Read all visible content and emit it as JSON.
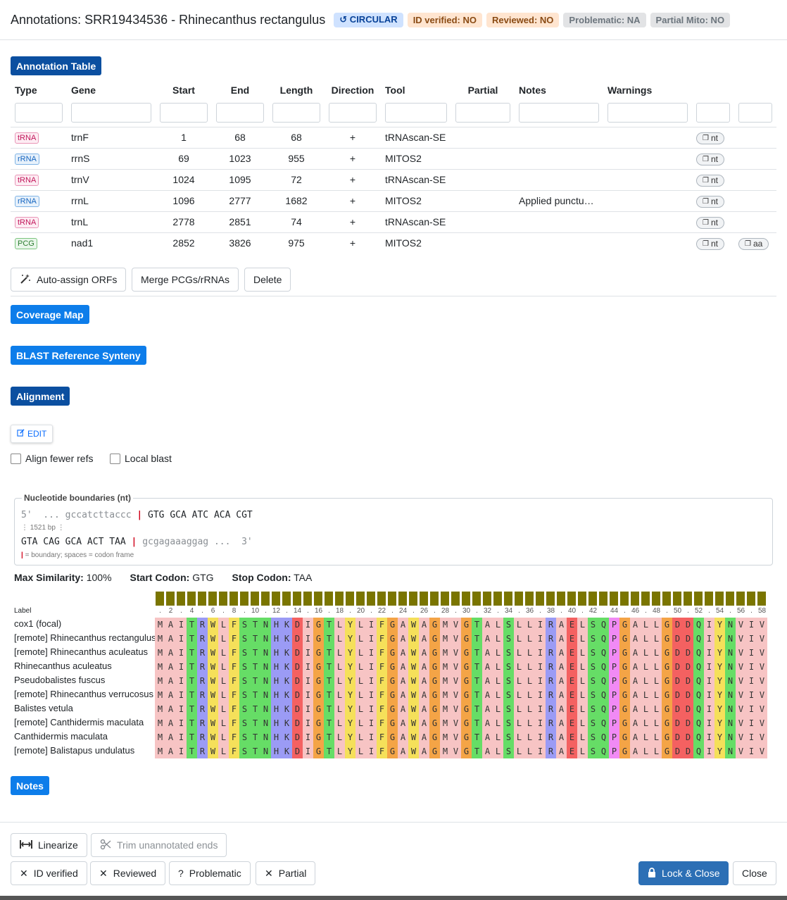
{
  "header": {
    "title": "Annotations: SRR19434536 - Rhinecanthus rectangulus",
    "badges": [
      {
        "label": "↺ CIRCULAR",
        "style": "circ"
      },
      {
        "label": "ID verified: NO",
        "style": "warn"
      },
      {
        "label": "Reviewed: NO",
        "style": "warn"
      },
      {
        "label": "Problematic: NA",
        "style": "gray"
      },
      {
        "label": "Partial Mito: NO",
        "style": "gray"
      }
    ]
  },
  "annotation_table": {
    "section_title": "Annotation Table",
    "columns": [
      "Type",
      "Gene",
      "Start",
      "End",
      "Length",
      "Direction",
      "Tool",
      "Partial",
      "Notes",
      "Warnings",
      "",
      ""
    ],
    "rows": [
      {
        "type": "tRNA",
        "gene": "trnF",
        "start": "1",
        "end": "68",
        "length": "68",
        "direction": "+",
        "tool": "tRNAscan-SE",
        "partial": "",
        "notes": "",
        "warnings": "",
        "nt": "nt",
        "aa": ""
      },
      {
        "type": "rRNA",
        "gene": "rrnS",
        "start": "69",
        "end": "1023",
        "length": "955",
        "direction": "+",
        "tool": "MITOS2",
        "partial": "",
        "notes": "",
        "warnings": "",
        "nt": "nt",
        "aa": ""
      },
      {
        "type": "tRNA",
        "gene": "trnV",
        "start": "1024",
        "end": "1095",
        "length": "72",
        "direction": "+",
        "tool": "tRNAscan-SE",
        "partial": "",
        "notes": "",
        "warnings": "",
        "nt": "nt",
        "aa": ""
      },
      {
        "type": "rRNA",
        "gene": "rrnL",
        "start": "1096",
        "end": "2777",
        "length": "1682",
        "direction": "+",
        "tool": "MITOS2",
        "partial": "",
        "notes": "Applied punctu…",
        "warnings": "",
        "nt": "nt",
        "aa": ""
      },
      {
        "type": "tRNA",
        "gene": "trnL",
        "start": "2778",
        "end": "2851",
        "length": "74",
        "direction": "+",
        "tool": "tRNAscan-SE",
        "partial": "",
        "notes": "",
        "warnings": "",
        "nt": "nt",
        "aa": ""
      },
      {
        "type": "PCG",
        "gene": "nad1",
        "start": "2852",
        "end": "3826",
        "length": "975",
        "direction": "+",
        "tool": "MITOS2",
        "partial": "",
        "notes": "",
        "warnings": "",
        "nt": "nt",
        "aa": "aa"
      }
    ]
  },
  "table_actions": {
    "auto_assign": "Auto-assign ORFs",
    "merge": "Merge PCGs/rRNAs",
    "delete": "Delete"
  },
  "sections": {
    "coverage": "Coverage Map",
    "blast": "BLAST Reference Synteny",
    "alignment": "Alignment",
    "notes": "Notes"
  },
  "alignment": {
    "edit_label": "EDIT",
    "align_fewer_refs": "Align fewer refs",
    "local_blast": "Local blast",
    "nt_boundaries": {
      "legend": "Nucleotide boundaries (nt)",
      "line1_prefix": "5'  ...",
      "line1_flank": "gccatcttaccc",
      "line1_seq": "GTG GCA ATC ACA CGT",
      "gap_note": "⋮ 1521 bp ⋮",
      "line2_seq": "GTA CAG GCA ACT TAA",
      "line2_flank": "gcgagaaaggag",
      "line2_suffix": "...  3'",
      "footnote": "= boundary; spaces = codon frame"
    },
    "stats": {
      "max_similarity_label": "Max Similarity:",
      "max_similarity": "100%",
      "start_codon_label": "Start Codon:",
      "start_codon": "GTG",
      "stop_codon_label": "Stop Codon:",
      "stop_codon": "TAA"
    },
    "label_header": "Label",
    "ticks": [
      ".",
      "2",
      ".",
      "4",
      ".",
      "6",
      ".",
      "8",
      ".",
      "10",
      ".",
      "12",
      ".",
      "14",
      ".",
      "16",
      ".",
      "18",
      ".",
      "20",
      ".",
      "22",
      ".",
      "24",
      ".",
      "26",
      ".",
      "28",
      ".",
      "30",
      ".",
      "32",
      ".",
      "34",
      ".",
      "36",
      ".",
      "38",
      ".",
      "40",
      ".",
      "42",
      ".",
      "44",
      ".",
      "46",
      ".",
      "48",
      ".",
      "50",
      ".",
      "52",
      ".",
      "54",
      ".",
      "56",
      ".",
      "58"
    ],
    "sequence": "MAITRWLFSTNHKDIGTLYLIFGAWAGMVGTALSLLIRAELSQPGALLGDDQIYNVIV",
    "labels": [
      "cox1 (focal)",
      "[remote] Rhinecanthus rectangulus",
      "[remote] Rhinecanthus aculeatus",
      "Rhinecanthus  aculeatus",
      "Pseudobalistes  fuscus",
      "[remote] Rhinecanthus verrucosus",
      "Balistes  vetula",
      "[remote] Canthidermis maculata",
      "Canthidermis  maculata",
      "[remote] Balistapus undulatus"
    ],
    "aa_colors": {
      "M": "#f7c4c4",
      "A": "#f7c4c4",
      "I": "#f7c4c4",
      "L": "#f7c4c4",
      "V": "#f7c4c4",
      "F": "#f5e05a",
      "W": "#f5e05a",
      "Y": "#f5e05a",
      "T": "#66dd66",
      "S": "#66dd66",
      "N": "#66dd66",
      "Q": "#66dd66",
      "G": "#f4a446",
      "P": "#f18af5",
      "R": "#9b9bf5",
      "H": "#9b9bf5",
      "K": "#9b9bf5",
      "D": "#f46161",
      "E": "#f46161",
      "C": "#f5e05a"
    },
    "consensus_color": "#7a7500"
  },
  "footer": {
    "linearize": "Linearize",
    "trim": "Trim unannotated ends",
    "id_verified": "ID verified",
    "reviewed": "Reviewed",
    "problematic": "Problematic",
    "partial": "Partial",
    "lock_close": "Lock & Close",
    "close": "Close"
  }
}
